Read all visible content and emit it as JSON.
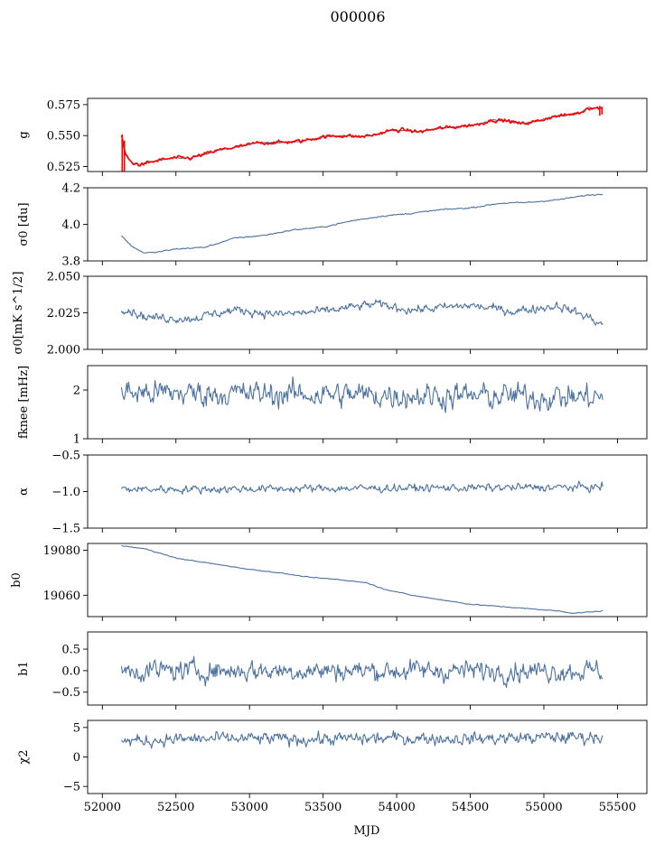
{
  "title": "000006",
  "chart_data": {
    "type": "line",
    "title": "000006",
    "xlabel": "MJD",
    "xlim": [
      51900,
      55700
    ],
    "xticks": [
      52000,
      52500,
      53000,
      53500,
      54000,
      54500,
      55000,
      55500
    ],
    "xtick_labels": [
      "52000",
      "52500",
      "53000",
      "53500",
      "54000",
      "54500",
      "55000",
      "55500"
    ],
    "x_range": [
      52130,
      55400
    ],
    "line_color": "#4c72a0",
    "overlay_color": "#ff0000",
    "panels": [
      {
        "ylabel": "g",
        "ylim": [
          0.521,
          0.58
        ],
        "yticks": [
          0.525,
          0.55,
          0.575
        ],
        "ytick_labels": [
          "0.525",
          "0.550",
          "0.575"
        ],
        "series": [
          {
            "color": "#4c72a0",
            "knots": [
              [
                52130,
                0.546
              ],
              [
                52160,
                0.534
              ],
              [
                52200,
                0.528
              ],
              [
                52260,
                0.5265
              ],
              [
                52400,
                0.5305
              ],
              [
                52500,
                0.532
              ],
              [
                52600,
                0.5318
              ],
              [
                52800,
                0.5385
              ],
              [
                52950,
                0.5415
              ],
              [
                53050,
                0.544
              ],
              [
                53200,
                0.5445
              ],
              [
                53350,
                0.5455
              ],
              [
                53500,
                0.549
              ],
              [
                53650,
                0.55
              ],
              [
                53750,
                0.549
              ],
              [
                53850,
                0.5505
              ],
              [
                53950,
                0.554
              ],
              [
                54050,
                0.5545
              ],
              [
                54150,
                0.553
              ],
              [
                54300,
                0.556
              ],
              [
                54400,
                0.557
              ],
              [
                54550,
                0.559
              ],
              [
                54650,
                0.5625
              ],
              [
                54750,
                0.562
              ],
              [
                54850,
                0.5595
              ],
              [
                54950,
                0.5615
              ],
              [
                55050,
                0.565
              ],
              [
                55150,
                0.5665
              ],
              [
                55250,
                0.5685
              ],
              [
                55300,
                0.5725
              ],
              [
                55400,
                0.572
              ]
            ],
            "noise": 0.0004
          },
          {
            "color": "#ff0000",
            "knots": [
              [
                52130,
                0.55
              ],
              [
                52160,
                0.534
              ],
              [
                52200,
                0.528
              ],
              [
                52260,
                0.5265
              ],
              [
                52400,
                0.5305
              ],
              [
                52500,
                0.532
              ],
              [
                52600,
                0.5318
              ],
              [
                52800,
                0.5385
              ],
              [
                52950,
                0.5415
              ],
              [
                53050,
                0.544
              ],
              [
                53200,
                0.5445
              ],
              [
                53350,
                0.5455
              ],
              [
                53500,
                0.549
              ],
              [
                53650,
                0.55
              ],
              [
                53750,
                0.549
              ],
              [
                53850,
                0.5505
              ],
              [
                53950,
                0.554
              ],
              [
                54050,
                0.5545
              ],
              [
                54150,
                0.553
              ],
              [
                54300,
                0.556
              ],
              [
                54400,
                0.557
              ],
              [
                54550,
                0.559
              ],
              [
                54650,
                0.5625
              ],
              [
                54750,
                0.562
              ],
              [
                54850,
                0.5595
              ],
              [
                54950,
                0.5615
              ],
              [
                55050,
                0.565
              ],
              [
                55150,
                0.5665
              ],
              [
                55250,
                0.5685
              ],
              [
                55300,
                0.5725
              ],
              [
                55400,
                0.572
              ]
            ],
            "noise": 0.0012
          }
        ]
      },
      {
        "ylabel": "σ0 [du]",
        "ylim": [
          3.8,
          4.2
        ],
        "yticks": [
          3.8,
          4.0,
          4.2
        ],
        "ytick_labels": [
          "3.8",
          "4.0",
          "4.2"
        ],
        "series": [
          {
            "color": "#4c72a0",
            "knots": [
              [
                52130,
                3.94
              ],
              [
                52200,
                3.88
              ],
              [
                52280,
                3.845
              ],
              [
                52350,
                3.845
              ],
              [
                52500,
                3.865
              ],
              [
                52700,
                3.875
              ],
              [
                52900,
                3.925
              ],
              [
                53100,
                3.94
              ],
              [
                53300,
                3.97
              ],
              [
                53500,
                3.985
              ],
              [
                53700,
                4.02
              ],
              [
                53900,
                4.045
              ],
              [
                54100,
                4.06
              ],
              [
                54300,
                4.08
              ],
              [
                54500,
                4.09
              ],
              [
                54700,
                4.115
              ],
              [
                54900,
                4.12
              ],
              [
                55100,
                4.135
              ],
              [
                55300,
                4.16
              ],
              [
                55400,
                4.165
              ]
            ],
            "noise": 0.003
          }
        ]
      },
      {
        "ylabel": "σ0[mK s^1/2]",
        "ylim": [
          2.0,
          2.05
        ],
        "yticks": [
          2.0,
          2.025,
          2.05
        ],
        "ytick_labels": [
          "2.000",
          "2.025",
          "2.050"
        ],
        "series": [
          {
            "color": "#4c72a0",
            "knots": [
              [
                52130,
                2.029
              ],
              [
                52300,
                2.022
              ],
              [
                52600,
                2.021
              ],
              [
                52900,
                2.027
              ],
              [
                53200,
                2.024
              ],
              [
                53500,
                2.026
              ],
              [
                53850,
                2.031
              ],
              [
                54100,
                2.027
              ],
              [
                54500,
                2.03
              ],
              [
                54800,
                2.026
              ],
              [
                55100,
                2.03
              ],
              [
                55300,
                2.022
              ],
              [
                55400,
                2.017
              ]
            ],
            "noise": 0.0025
          }
        ]
      },
      {
        "ylabel": "fknee [mHz]",
        "ylim": [
          1.0,
          2.5
        ],
        "yticks": [
          1,
          2
        ],
        "ytick_labels": [
          "1",
          "2"
        ],
        "series": [
          {
            "color": "#4c72a0",
            "knots": [
              [
                52130,
                1.95
              ],
              [
                55400,
                1.85
              ]
            ],
            "noise": 0.22
          }
        ]
      },
      {
        "ylabel": "α",
        "ylim": [
          -1.5,
          -0.5
        ],
        "yticks": [
          -1.5,
          -1.0,
          -0.5
        ],
        "ytick_labels": [
          "−1.5",
          "−1.0",
          "−0.5"
        ],
        "series": [
          {
            "color": "#4c72a0",
            "knots": [
              [
                52130,
                -0.97
              ],
              [
                55400,
                -0.94
              ]
            ],
            "noise": 0.045
          }
        ]
      },
      {
        "ylabel": "b0",
        "ylim": [
          19050.5,
          19083
        ],
        "yticks": [
          19060,
          19080
        ],
        "ytick_labels": [
          "19060",
          "19080"
        ],
        "series": [
          {
            "color": "#4c72a0",
            "knots": [
              [
                52130,
                19082
              ],
              [
                52300,
                19080.5
              ],
              [
                52500,
                19076.5
              ],
              [
                52700,
                19074.5
              ],
              [
                53000,
                19071.5
              ],
              [
                53200,
                19070
              ],
              [
                53400,
                19068
              ],
              [
                53600,
                19067
              ],
              [
                53800,
                19065.5
              ],
              [
                53900,
                19063
              ],
              [
                54100,
                19060
              ],
              [
                54300,
                19058
              ],
              [
                54500,
                19056
              ],
              [
                54700,
                19055
              ],
              [
                54900,
                19054
              ],
              [
                55100,
                19053
              ],
              [
                55200,
                19052
              ],
              [
                55400,
                19053
              ]
            ],
            "noise": 0.15
          }
        ]
      },
      {
        "ylabel": "b1",
        "ylim": [
          -0.8,
          0.9
        ],
        "yticks": [
          -0.5,
          0.0,
          0.5
        ],
        "ytick_labels": [
          "−0.5",
          "0.0",
          "0.5"
        ],
        "series": [
          {
            "color": "#4c72a0",
            "knots": [
              [
                52130,
                0.0
              ],
              [
                55400,
                0.0
              ]
            ],
            "noise": 0.2
          }
        ]
      },
      {
        "ylabel": "χ2",
        "ylim": [
          -6.2,
          6.2
        ],
        "yticks": [
          -5,
          0,
          5
        ],
        "ytick_labels": [
          "−5",
          "0",
          "5"
        ],
        "series": [
          {
            "color": "#4c72a0",
            "knots": [
              [
                52130,
                2.6
              ],
              [
                52500,
                3.0
              ],
              [
                53000,
                3.1
              ],
              [
                53500,
                3.0
              ],
              [
                54000,
                3.2
              ],
              [
                54500,
                3.1
              ],
              [
                55000,
                3.3
              ],
              [
                55400,
                3.4
              ]
            ],
            "noise": 0.9
          }
        ]
      }
    ]
  }
}
